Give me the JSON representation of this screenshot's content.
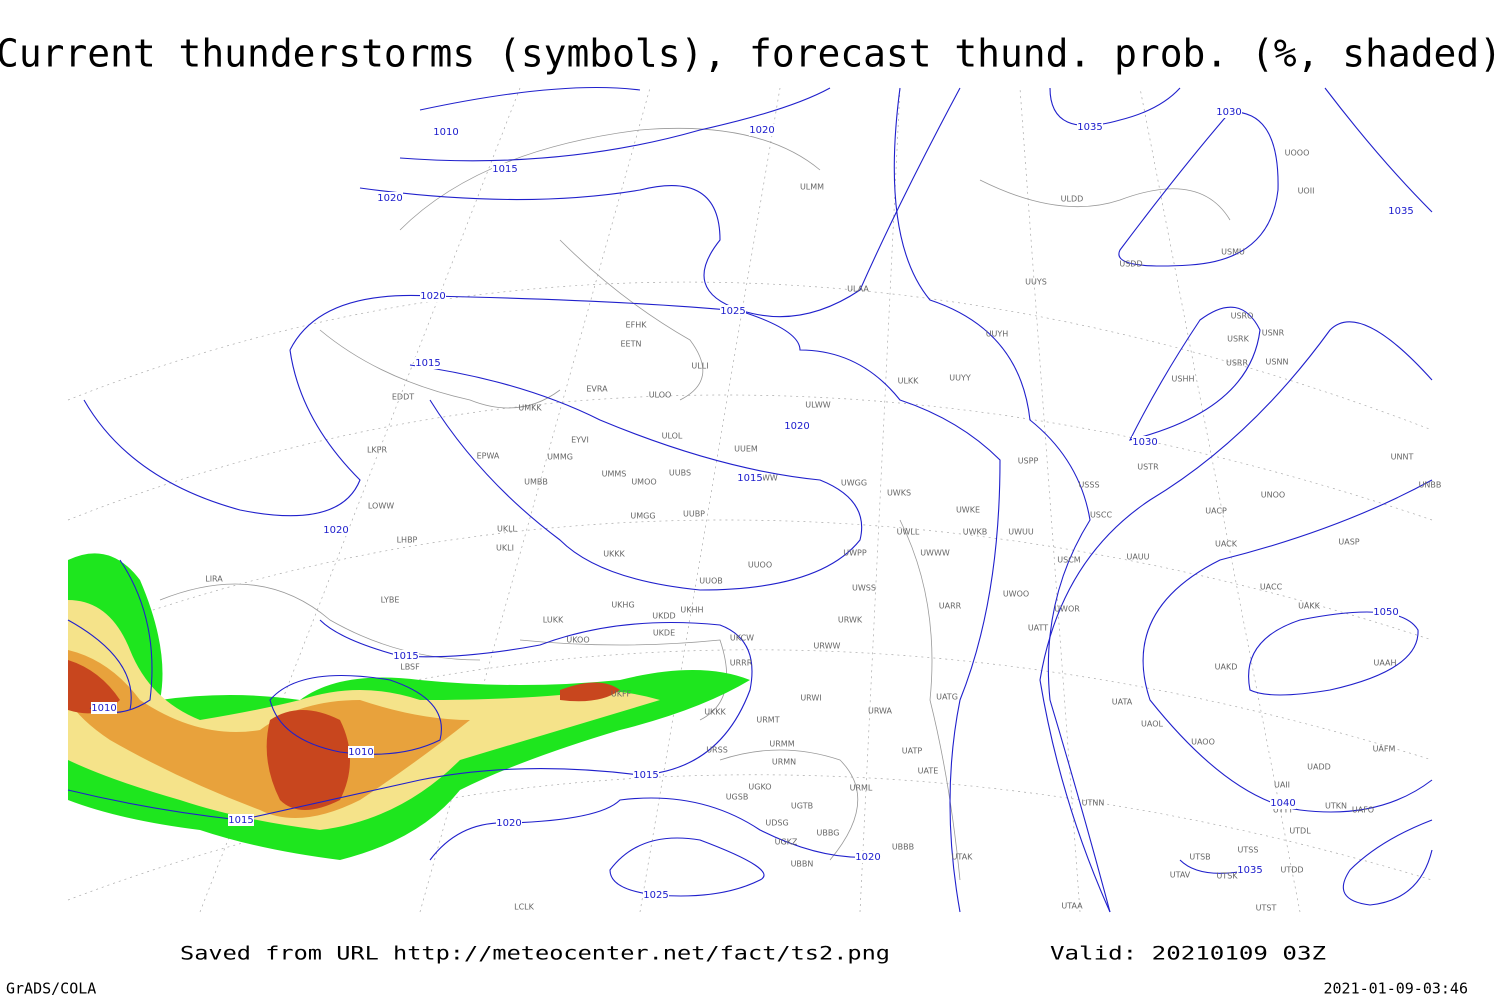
{
  "header": {
    "title": "Current thunderstorms (symbols), forecast thund. prob. (%, shaded)"
  },
  "footer": {
    "source": "Saved from URL http://meteocenter.net/fact/ts2.png",
    "valid": "Valid: 20210109 03Z",
    "credit": "GrADS/COLA",
    "timestamp": "2021-01-09-03:46"
  },
  "isobar_labels": [
    "1010",
    "1020",
    "1015",
    "1020",
    "1035",
    "1030",
    "1035",
    "1020",
    "1025",
    "1015",
    "1020",
    "1030",
    "1015",
    "1020",
    "1050",
    "1015",
    "1010",
    "1010",
    "1015",
    "1015",
    "1020",
    "1040",
    "1020",
    "1035",
    "1025"
  ],
  "stations": [
    "ULMM",
    "ULDD",
    "UOII",
    "UOOO",
    "USDD",
    "USMU",
    "ULAA",
    "UUYS",
    "USRO",
    "USNR",
    "USRK",
    "USRR",
    "USNN",
    "USHH",
    "EFHK",
    "EETN",
    "ULLI",
    "UUYH",
    "ULKK",
    "UUYY",
    "EVRA",
    "ULOO",
    "EDDT",
    "UMKK",
    "ULWW",
    "ULOL",
    "EYVI",
    "UUEM",
    "LKPR",
    "EPWA",
    "UMMG",
    "UUWW",
    "UMMS",
    "UMOO",
    "UUBS",
    "UWGG",
    "UWKS",
    "USPP",
    "USTR",
    "UNNT",
    "UNBB",
    "UMBB",
    "USSS",
    "UNOO",
    "UWKE",
    "LOWW",
    "UUBP",
    "UMGG",
    "USCC",
    "UACP",
    "UWKB",
    "UWUU",
    "UWLL",
    "UKLL",
    "UKLI",
    "LHBP",
    "UACK",
    "UASP",
    "UKKK",
    "UWWW",
    "UWPP",
    "USCM",
    "UAUU",
    "UUOO",
    "UUOB",
    "LIRA",
    "UWSS",
    "UACC",
    "LYBE",
    "UARR",
    "UWOO",
    "UAKK",
    "UKHG",
    "UKDD",
    "UKHH",
    "LUKK",
    "UWOR",
    "URWK",
    "UATT",
    "UKOO",
    "UKDE",
    "UKCW",
    "URWW",
    "UAKD",
    "LBSF",
    "URRR",
    "UAAH",
    "UKFF",
    "URWI",
    "UATG",
    "UATA",
    "UKKK",
    "URWA",
    "URMT",
    "UAOL",
    "URMM",
    "URSS",
    "UATP",
    "UAOO",
    "UAFM",
    "URMN",
    "UATE",
    "UADD",
    "UGKO",
    "URML",
    "UAII",
    "UGSB",
    "UGTB",
    "UTNN",
    "UTKN",
    "UAFO",
    "UTTT",
    "UDSG",
    "UBBG",
    "UTDL",
    "UGKZ",
    "UBBB",
    "UTSS",
    "UTSB",
    "UTAK",
    "UBBN",
    "UTAV",
    "UTSK",
    "UTDD",
    "LCLK",
    "UTAA",
    "UTST"
  ]
}
